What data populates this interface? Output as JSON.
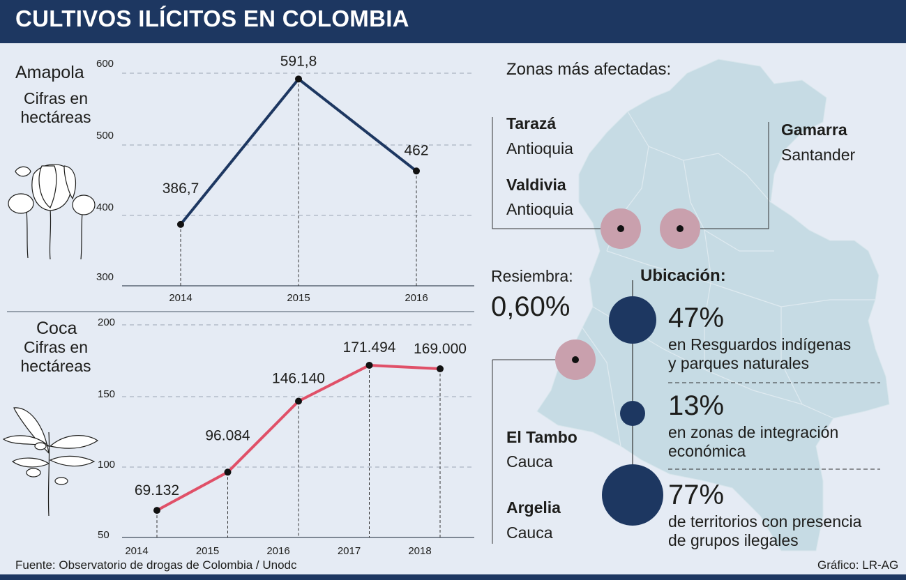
{
  "header": {
    "title": "CULTIVOS ILÍCITOS EN COLOMBIA"
  },
  "colors": {
    "header_bg": "#1d3761",
    "amapola_line": "#1d3761",
    "coca_line": "#e05068",
    "zone_marker": "#c9a0ad",
    "location_circle": "#1d3761",
    "map_fill": "#c6dbe4"
  },
  "icons": {
    "amapola": "poppy-plant-icon",
    "coca": "coca-leaf-icon",
    "map": "colombia-map-icon"
  },
  "amapola": {
    "title": "Amapola",
    "subtitle_line1": "Cifras en",
    "subtitle_line2": "hectáreas"
  },
  "coca": {
    "title": "Coca",
    "subtitle_line1": "Cifras en",
    "subtitle_line2": "hectáreas"
  },
  "chart_data": [
    {
      "type": "line",
      "categories": [
        "2014",
        "2015",
        "2016"
      ],
      "series": [
        {
          "values": [
            386.7,
            591.8,
            462
          ]
        }
      ],
      "data_labels": [
        "386,7",
        "591,8",
        "462"
      ],
      "yticks": [
        "600",
        "500",
        "400",
        "300"
      ],
      "ylim": [
        300,
        600
      ],
      "title": "Amapola",
      "ylabel": "Cifras en hectáreas",
      "grid": "dashed horizontal"
    },
    {
      "type": "line",
      "categories": [
        "2014",
        "2015",
        "2016",
        "2017",
        "2018"
      ],
      "series": [
        {
          "values": [
            69132,
            96084,
            146140,
            171494,
            169000
          ]
        }
      ],
      "data_labels": [
        "69.132",
        "96.084",
        "146.140",
        "171.494",
        "169.000"
      ],
      "yticks": [
        "200",
        "150",
        "100",
        "50"
      ],
      "title": "Coca",
      "ylabel": "Cifras en hectáreas",
      "grid": "dashed horizontal"
    }
  ],
  "zones": {
    "title": "Zonas más afectadas:",
    "items": [
      {
        "name": "Tarazá",
        "dept": "Antioquia"
      },
      {
        "name": "Valdivia",
        "dept": "Antioquia"
      },
      {
        "name": "Gamarra",
        "dept": "Santander"
      },
      {
        "name": "El Tambo",
        "dept": "Cauca"
      },
      {
        "name": "Argelia",
        "dept": "Cauca"
      }
    ]
  },
  "resiembra": {
    "label": "Resiembra:",
    "value": "0,60%"
  },
  "ubicacion": {
    "title": "Ubicación:",
    "items": [
      {
        "pct": "47%",
        "line1": "en Resguardos indígenas",
        "line2": "y parques naturales"
      },
      {
        "pct": "13%",
        "line1": "en zonas de integración",
        "line2": "económica"
      },
      {
        "pct": "77%",
        "line1": "de territorios con presencia",
        "line2": "de grupos ilegales"
      }
    ]
  },
  "footer": {
    "source": "Fuente: Observatorio de drogas de Colombia / Unodc",
    "credit": "Gráfico: LR-AG"
  }
}
